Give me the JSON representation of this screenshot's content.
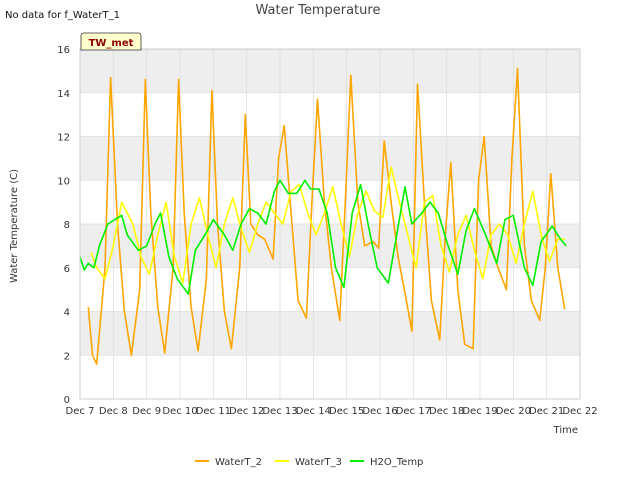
{
  "no_data_note": "No data for f_WaterT_1",
  "badge": "TW_met",
  "colors": {
    "WaterT_2": "#ffa500",
    "WaterT_3": "#ffff00",
    "H2O_Temp": "#00ee00",
    "band": "#eeeeee",
    "grid": "#dddddd",
    "badge_bg": "#ffffcc"
  },
  "chart_data": {
    "type": "line",
    "title": "Water Temperature",
    "xlabel": "Time",
    "ylabel": "Water Temperature (C)",
    "ylim": [
      0,
      16
    ],
    "yticks": [
      0,
      2,
      4,
      6,
      8,
      10,
      12,
      14,
      16
    ],
    "xlim": [
      "Dec 7",
      "Dec 22"
    ],
    "xticks": [
      "Dec 7",
      "Dec 8",
      "Dec 9",
      "Dec 10",
      "Dec 11",
      "Dec 12",
      "Dec 13",
      "Dec 14",
      "Dec 15",
      "Dec 16",
      "Dec 17",
      "Dec 18",
      "Dec 19",
      "Dec 20",
      "Dec 21",
      "Dec 22"
    ],
    "grid": true,
    "legend_position": "bottom",
    "series": [
      {
        "name": "WaterT_2",
        "x": [
          "Dec 7 06:00",
          "Dec 7 09:00",
          "Dec 7 12:00",
          "Dec 7 18:00",
          "Dec 7 22:00",
          "Dec 8 03:00",
          "Dec 8 08:00",
          "Dec 8 13:00",
          "Dec 8 19:00",
          "Dec 8 23:00",
          "Dec 9 03:00",
          "Dec 9 08:00",
          "Dec 9 13:00",
          "Dec 9 19:00",
          "Dec 9 23:00",
          "Dec 10 03:00",
          "Dec 10 08:00",
          "Dec 10 13:00",
          "Dec 10 19:00",
          "Dec 10 23:00",
          "Dec 11 03:00",
          "Dec 11 08:00",
          "Dec 11 13:00",
          "Dec 11 19:00",
          "Dec 11 23:00",
          "Dec 12 03:00",
          "Dec 12 08:00",
          "Dec 12 13:00",
          "Dec 12 19:00",
          "Dec 12 23:00",
          "Dec 13 03:00",
          "Dec 13 08:00",
          "Dec 13 13:00",
          "Dec 13 19:00",
          "Dec 13 23:00",
          "Dec 14 03:00",
          "Dec 14 08:00",
          "Dec 14 13:00",
          "Dec 14 19:00",
          "Dec 14 23:00",
          "Dec 15 03:00",
          "Dec 15 08:00",
          "Dec 15 13:00",
          "Dec 15 19:00",
          "Dec 15 23:00",
          "Dec 16 03:00",
          "Dec 16 08:00",
          "Dec 16 13:00",
          "Dec 16 19:00",
          "Dec 16 23:00",
          "Dec 17 03:00",
          "Dec 17 08:00",
          "Dec 17 13:00",
          "Dec 17 19:00",
          "Dec 17 23:00",
          "Dec 18 03:00",
          "Dec 18 08:00",
          "Dec 18 13:00",
          "Dec 18 19:00",
          "Dec 18 23:00",
          "Dec 19 03:00",
          "Dec 19 08:00",
          "Dec 19 13:00",
          "Dec 19 19:00",
          "Dec 19 23:00",
          "Dec 20 03:00",
          "Dec 20 08:00",
          "Dec 20 13:00",
          "Dec 20 19:00",
          "Dec 20 23:00",
          "Dec 21 03:00",
          "Dec 21 08:00",
          "Dec 21 13:00"
        ],
        "y": [
          4.2,
          2.0,
          1.6,
          6.0,
          14.7,
          8.0,
          4.0,
          2.0,
          5.0,
          14.6,
          8.5,
          4.2,
          2.1,
          6.0,
          14.6,
          8.5,
          4.2,
          2.2,
          5.5,
          14.1,
          8.0,
          4.0,
          2.3,
          6.0,
          13.0,
          8.0,
          7.5,
          7.3,
          6.4,
          11.0,
          12.5,
          8.5,
          4.5,
          3.7,
          9.0,
          13.7,
          9.0,
          6.0,
          3.6,
          9.0,
          14.8,
          9.0,
          7.0,
          7.2,
          6.9,
          11.8,
          9.0,
          6.5,
          4.5,
          3.1,
          14.4,
          9.0,
          4.5,
          2.7,
          7.5,
          10.8,
          5.0,
          2.5,
          2.3,
          10.0,
          12.0,
          7.0,
          6.0,
          5.0,
          11.0,
          15.1,
          7.0,
          4.5,
          3.6,
          6.0,
          10.3,
          6.0,
          4.1
        ]
      },
      {
        "name": "WaterT_3",
        "x": [
          "Dec 7 08:00",
          "Dec 7 12:00",
          "Dec 7 18:00",
          "Dec 8 00:00",
          "Dec 8 06:00",
          "Dec 8 14:00",
          "Dec 8 20:00",
          "Dec 9 02:00",
          "Dec 9 08:00",
          "Dec 9 14:00",
          "Dec 9 20:00",
          "Dec 10 02:00",
          "Dec 10 08:00",
          "Dec 10 14:00",
          "Dec 10 20:00",
          "Dec 11 02:00",
          "Dec 11 08:00",
          "Dec 11 14:00",
          "Dec 11 20:00",
          "Dec 12 02:00",
          "Dec 12 08:00",
          "Dec 12 14:00",
          "Dec 12 20:00",
          "Dec 13 02:00",
          "Dec 13 08:00",
          "Dec 13 14:00",
          "Dec 13 20:00",
          "Dec 14 02:00",
          "Dec 14 08:00",
          "Dec 14 14:00",
          "Dec 14 20:00",
          "Dec 15 02:00",
          "Dec 15 08:00",
          "Dec 15 14:00",
          "Dec 15 20:00",
          "Dec 16 02:00",
          "Dec 16 08:00",
          "Dec 16 14:00",
          "Dec 16 20:00",
          "Dec 17 02:00",
          "Dec 17 08:00",
          "Dec 17 14:00",
          "Dec 17 20:00",
          "Dec 18 02:00",
          "Dec 18 08:00",
          "Dec 18 14:00",
          "Dec 18 20:00",
          "Dec 19 02:00",
          "Dec 19 08:00",
          "Dec 19 14:00",
          "Dec 19 20:00",
          "Dec 20 02:00",
          "Dec 20 08:00",
          "Dec 20 14:00",
          "Dec 20 20:00",
          "Dec 21 02:00",
          "Dec 21 08:00",
          "Dec 21 13:00"
        ],
        "y": [
          6.7,
          6.0,
          5.5,
          7.0,
          9.0,
          8.0,
          6.5,
          5.7,
          7.5,
          9.0,
          6.5,
          5.3,
          8.0,
          9.2,
          7.5,
          6.0,
          8.0,
          9.2,
          7.8,
          6.7,
          8.0,
          9.0,
          8.5,
          8.0,
          9.5,
          9.8,
          8.5,
          7.5,
          8.5,
          9.7,
          8.0,
          6.5,
          8.5,
          9.5,
          8.6,
          8.3,
          10.6,
          9.0,
          7.5,
          6.0,
          9.0,
          9.3,
          7.0,
          5.8,
          7.5,
          8.4,
          6.8,
          5.5,
          7.5,
          8.0,
          7.5,
          6.2,
          8.0,
          9.5,
          7.5,
          6.3,
          7.3,
          7.3
        ]
      },
      {
        "name": "H2O_Temp",
        "x": [
          "Dec 7 00:00",
          "Dec 7 03:00",
          "Dec 7 06:00",
          "Dec 7 10:00",
          "Dec 7 14:00",
          "Dec 7 20:00",
          "Dec 8 06:00",
          "Dec 8 10:00",
          "Dec 8 18:00",
          "Dec 9 00:00",
          "Dec 9 06:00",
          "Dec 9 10:00",
          "Dec 9 16:00",
          "Dec 9 22:00",
          "Dec 10 06:00",
          "Dec 10 11:00",
          "Dec 10 18:00",
          "Dec 11 00:00",
          "Dec 11 08:00",
          "Dec 11 14:00",
          "Dec 11 20:00",
          "Dec 12 02:00",
          "Dec 12 08:00",
          "Dec 12 14:00",
          "Dec 12 20:00",
          "Dec 13 00:00",
          "Dec 13 06:00",
          "Dec 13 12:00",
          "Dec 13 18:00",
          "Dec 13 22:00",
          "Dec 14 04:00",
          "Dec 14 10:00",
          "Dec 14 16:00",
          "Dec 14 22:00",
          "Dec 15 04:00",
          "Dec 15 10:00",
          "Dec 15 16:00",
          "Dec 15 22:00",
          "Dec 16 06:00",
          "Dec 16 12:00",
          "Dec 16 18:00",
          "Dec 16 23:00",
          "Dec 17 06:00",
          "Dec 17 12:00",
          "Dec 17 18:00",
          "Dec 18 00:00",
          "Dec 18 08:00",
          "Dec 18 14:00",
          "Dec 18 20:00",
          "Dec 19 04:00",
          "Dec 19 12:00",
          "Dec 19 18:00",
          "Dec 20 00:00",
          "Dec 20 08:00",
          "Dec 20 14:00",
          "Dec 20 20:00",
          "Dec 21 04:00",
          "Dec 21 10:00",
          "Dec 21 14:00"
        ],
        "y": [
          6.5,
          5.9,
          6.2,
          6.0,
          7.0,
          8.0,
          8.4,
          7.5,
          6.8,
          7.0,
          8.0,
          8.5,
          6.5,
          5.5,
          4.8,
          6.8,
          7.5,
          8.2,
          7.5,
          6.8,
          8.0,
          8.7,
          8.5,
          8.0,
          9.5,
          10.0,
          9.4,
          9.4,
          10.0,
          9.6,
          9.6,
          8.5,
          6.0,
          5.1,
          8.5,
          9.8,
          7.8,
          6.0,
          5.3,
          7.5,
          9.7,
          8.0,
          8.5,
          9.0,
          8.5,
          7.2,
          5.7,
          7.7,
          8.7,
          7.5,
          6.2,
          8.2,
          8.4,
          6.0,
          5.2,
          7.2,
          7.9,
          7.3,
          7.0
        ]
      }
    ]
  },
  "legend": [
    {
      "label": "WaterT_2",
      "color": "#ffa500"
    },
    {
      "label": "WaterT_3",
      "color": "#ffff00"
    },
    {
      "label": "H2O_Temp",
      "color": "#00ee00"
    }
  ]
}
